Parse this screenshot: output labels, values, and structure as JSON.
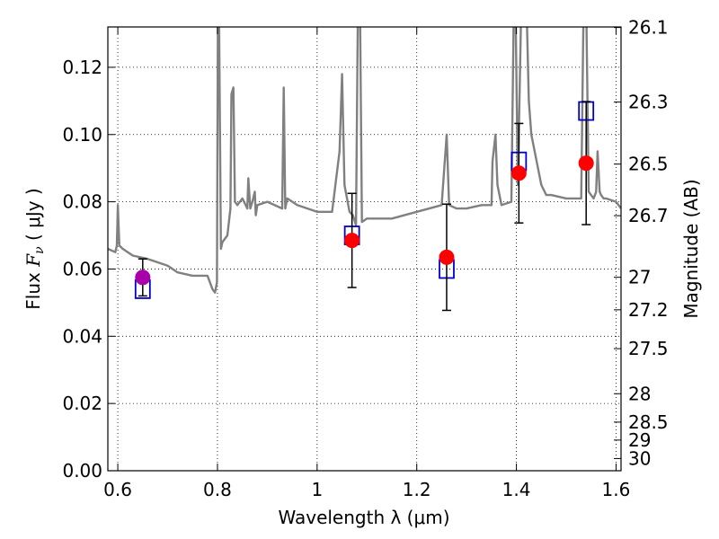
{
  "chart_data": {
    "type": "scatter",
    "xlabel": "Wavelength  λ (μm)",
    "ylabel": "Flux  F_ν  ( μJy )",
    "ylabel_parts": {
      "pre": "Flux  ",
      "var": "F",
      "sub": "ν",
      "post": "  ( μJy )"
    },
    "y2label": "Magnitude (AB)",
    "xlim": [
      0.58,
      1.61
    ],
    "ylim": [
      0.0,
      0.132
    ],
    "grid": true,
    "xticks": [
      0.6,
      0.8,
      1.0,
      1.2,
      1.4,
      1.6
    ],
    "xtick_labels": [
      "0.6",
      "0.8",
      "1",
      "1.2",
      "1.4",
      "1.6"
    ],
    "yticks": [
      0.0,
      0.02,
      0.04,
      0.06,
      0.08,
      0.1,
      0.12
    ],
    "ytick_labels": [
      "0.00",
      "0.02",
      "0.04",
      "0.06",
      "0.08",
      "0.10",
      "0.12"
    ],
    "mag_ticks": [
      26.1,
      26.3,
      26.5,
      26.7,
      27.0,
      27.2,
      27.5,
      28.0,
      28.5,
      29.0,
      30.0
    ],
    "mag_tick_labels": [
      "26.1",
      "26.3",
      "26.5",
      "26.7",
      "27",
      "27.2",
      "27.5",
      "28",
      "28.5",
      "29",
      "30"
    ],
    "series": [
      {
        "role": "model-spectrum",
        "style": "line",
        "color": "#808080",
        "x": [
          0.58,
          0.595,
          0.598,
          0.6,
          0.603,
          0.61,
          0.63,
          0.66,
          0.7,
          0.72,
          0.75,
          0.78,
          0.79,
          0.795,
          0.799,
          0.801,
          0.803,
          0.807,
          0.81,
          0.82,
          0.826,
          0.828,
          0.832,
          0.835,
          0.84,
          0.85,
          0.86,
          0.862,
          0.866,
          0.87,
          0.875,
          0.877,
          0.88,
          0.9,
          0.93,
          0.933,
          0.936,
          0.94,
          0.96,
          1.0,
          1.03,
          1.045,
          1.05,
          1.055,
          1.065,
          1.072,
          1.078,
          1.082,
          1.086,
          1.09,
          1.1,
          1.15,
          1.2,
          1.25,
          1.26,
          1.265,
          1.28,
          1.3,
          1.33,
          1.35,
          1.352,
          1.358,
          1.362,
          1.37,
          1.39,
          1.395,
          1.398,
          1.403,
          1.41,
          1.42,
          1.425,
          1.43,
          1.45,
          1.46,
          1.47,
          1.5,
          1.53,
          1.535,
          1.54,
          1.545,
          1.555,
          1.56,
          1.563,
          1.567,
          1.57,
          1.575,
          1.58,
          1.6,
          1.61
        ],
        "y": [
          0.066,
          0.065,
          0.067,
          0.079,
          0.067,
          0.066,
          0.064,
          0.063,
          0.061,
          0.059,
          0.058,
          0.058,
          0.054,
          0.053,
          0.056,
          0.14,
          0.14,
          0.066,
          0.068,
          0.07,
          0.078,
          0.112,
          0.114,
          0.08,
          0.079,
          0.081,
          0.078,
          0.087,
          0.078,
          0.08,
          0.083,
          0.076,
          0.079,
          0.08,
          0.078,
          0.114,
          0.078,
          0.081,
          0.079,
          0.077,
          0.077,
          0.095,
          0.118,
          0.085,
          0.077,
          0.076,
          0.073,
          0.14,
          0.14,
          0.074,
          0.075,
          0.075,
          0.077,
          0.079,
          0.1,
          0.079,
          0.078,
          0.078,
          0.079,
          0.079,
          0.092,
          0.1,
          0.085,
          0.079,
          0.08,
          0.14,
          0.14,
          0.085,
          0.14,
          0.14,
          0.11,
          0.1,
          0.085,
          0.082,
          0.082,
          0.081,
          0.081,
          0.14,
          0.14,
          0.083,
          0.081,
          0.083,
          0.095,
          0.083,
          0.082,
          0.081,
          0.081,
          0.08,
          0.078
        ]
      },
      {
        "role": "model-bandpass-flux",
        "style": "open-square",
        "color": "#0000cc",
        "x": [
          0.65,
          1.07,
          1.26,
          1.405,
          1.54
        ],
        "y": [
          0.054,
          0.07,
          0.06,
          0.092,
          0.107
        ]
      },
      {
        "role": "observed-flux",
        "style": "filled-circle",
        "x": [
          0.65,
          1.07,
          1.26,
          1.405,
          1.54
        ],
        "y": [
          0.0575,
          0.0685,
          0.0635,
          0.0885,
          0.0915
        ],
        "yerr": [
          0.0055,
          0.014,
          0.0158,
          0.0148,
          0.0183
        ],
        "colors": [
          "#aa00aa",
          "#ff0000",
          "#ff0000",
          "#ff0000",
          "#ff0000"
        ]
      }
    ]
  }
}
